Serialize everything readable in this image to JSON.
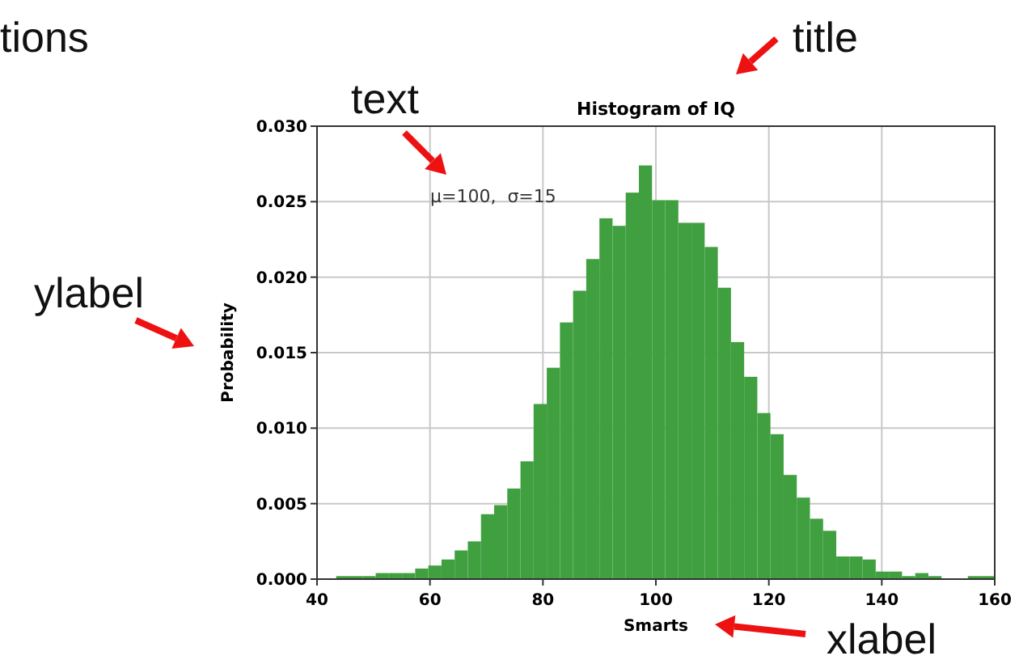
{
  "chart_data": {
    "type": "histogram",
    "title": "Histogram of IQ",
    "xlabel": "Smarts",
    "ylabel": "Probability",
    "color": "#40a040",
    "grid": true,
    "bins": [
      43.4,
      45.73,
      48.06,
      50.39,
      52.72,
      55.05,
      57.38,
      59.71,
      62.04,
      64.37,
      66.7,
      69.03,
      71.36,
      73.69,
      76.02,
      78.35,
      80.68,
      83.01,
      85.34,
      87.67,
      90,
      92.33,
      94.66,
      96.99,
      99.32,
      101.65,
      103.98,
      106.31,
      108.64,
      110.97,
      113.3,
      115.63,
      117.96,
      120.29,
      122.62,
      124.95,
      127.28,
      129.61,
      131.94,
      134.27,
      136.6,
      138.93,
      141.26,
      143.59,
      145.92,
      148.25,
      150.58,
      152.91,
      155.24,
      157.57,
      159.9
    ],
    "values": [
      0.0002,
      0.0002,
      0.0002,
      0.0004,
      0.0004,
      0.0004,
      0.0007,
      0.0009,
      0.0013,
      0.0019,
      0.0025,
      0.0043,
      0.0049,
      0.006,
      0.0078,
      0.0116,
      0.014,
      0.017,
      0.0191,
      0.0212,
      0.0239,
      0.0234,
      0.0256,
      0.0274,
      0.0251,
      0.0251,
      0.0236,
      0.0236,
      0.022,
      0.0193,
      0.0157,
      0.0134,
      0.011,
      0.0096,
      0.0069,
      0.0054,
      0.004,
      0.0032,
      0.0015,
      0.0015,
      0.0013,
      0.0005,
      0.0005,
      0.0002,
      0.0004,
      0.0002,
      0,
      0,
      0.0002,
      0.0002
    ],
    "xlim": [
      40,
      160
    ],
    "xticks": [
      40,
      60,
      80,
      100,
      120,
      140,
      160
    ],
    "ylim": [
      0,
      0.03
    ],
    "yticks": [
      {
        "value": 0,
        "label": "0.000"
      },
      {
        "value": 0.005,
        "label": "0.005"
      },
      {
        "value": 0.01,
        "label": "0.010"
      },
      {
        "value": 0.015,
        "label": "0.015"
      },
      {
        "value": 0.02,
        "label": "0.020"
      },
      {
        "value": 0.025,
        "label": "0.025"
      },
      {
        "value": 0.03,
        "label": "0.030"
      }
    ],
    "annotations": [
      "μ=100,  σ=15",
      "tions",
      "title",
      "text",
      "ylabel",
      "xlabel"
    ]
  }
}
